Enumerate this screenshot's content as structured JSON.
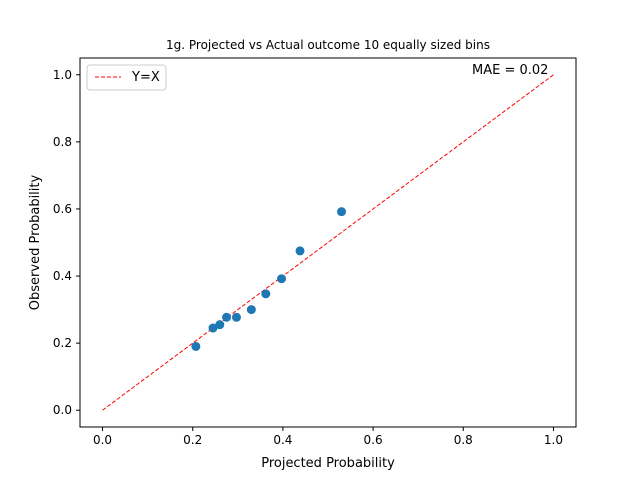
{
  "chart_data": {
    "type": "scatter",
    "title": "1g. Projected vs Actual outcome 10 equally sized bins",
    "xlabel": "Projected Probability",
    "ylabel": "Observed Probability",
    "xlim": [
      -0.05,
      1.05
    ],
    "ylim": [
      -0.05,
      1.05
    ],
    "xticks": [
      0.0,
      0.2,
      0.4,
      0.6,
      0.8,
      1.0
    ],
    "yticks": [
      0.0,
      0.2,
      0.4,
      0.6,
      0.8,
      1.0
    ],
    "xtick_labels": [
      "0.0",
      "0.2",
      "0.4",
      "0.6",
      "0.8",
      "1.0"
    ],
    "ytick_labels": [
      "0.0",
      "0.2",
      "0.4",
      "0.6",
      "0.8",
      "1.0"
    ],
    "grid": false,
    "legend_position": "top-left",
    "series": [
      {
        "kind": "scatter",
        "color": "#1f77b4",
        "x": [
          0.207,
          0.245,
          0.26,
          0.275,
          0.297,
          0.33,
          0.362,
          0.397,
          0.438,
          0.53
        ],
        "y": [
          0.19,
          0.245,
          0.255,
          0.277,
          0.277,
          0.3,
          0.347,
          0.392,
          0.475,
          0.592
        ]
      },
      {
        "kind": "reference-line",
        "name": "Y=X",
        "color": "#ff0000",
        "line_style": "dashed",
        "x": [
          0.0,
          1.0
        ],
        "y": [
          0.0,
          1.0
        ]
      }
    ],
    "annotation": {
      "text": "MAE = 0.02",
      "x": 0.82,
      "y": 1.0
    }
  }
}
